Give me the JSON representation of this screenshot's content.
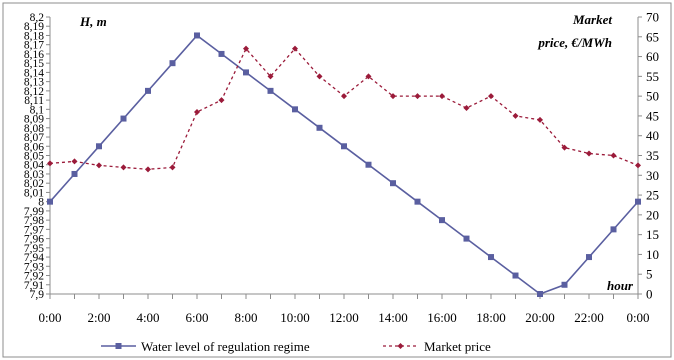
{
  "chart_data": {
    "type": "line",
    "x": [
      "0:00",
      "1:00",
      "2:00",
      "3:00",
      "4:00",
      "5:00",
      "6:00",
      "7:00",
      "8:00",
      "9:00",
      "10:00",
      "11:00",
      "12:00",
      "13:00",
      "14:00",
      "15:00",
      "16:00",
      "17:00",
      "18:00",
      "19:00",
      "20:00",
      "21:00",
      "22:00",
      "23:00",
      "0:00"
    ],
    "x_tick_labels": [
      "0:00",
      "2:00",
      "4:00",
      "6:00",
      "8:00",
      "10:00",
      "12:00",
      "14:00",
      "16:00",
      "18:00",
      "20:00",
      "22:00",
      "0:00"
    ],
    "series": [
      {
        "name": "Water level of regulation regime",
        "axis": "left",
        "color": "#5a5fa0",
        "marker": "square",
        "line_style": "solid",
        "values": [
          8.0,
          8.03,
          8.06,
          8.09,
          8.12,
          8.15,
          8.18,
          8.16,
          8.14,
          8.12,
          8.1,
          8.08,
          8.06,
          8.04,
          8.02,
          8.0,
          7.98,
          7.96,
          7.94,
          7.92,
          7.9,
          7.91,
          7.94,
          7.97,
          8.0
        ]
      },
      {
        "name": "Market price",
        "axis": "right",
        "color": "#9b1b3a",
        "marker": "diamond",
        "line_style": "dashed",
        "values": [
          33,
          33.5,
          32.5,
          32,
          31.5,
          32,
          46,
          49,
          62,
          55,
          62,
          55,
          50,
          55,
          50,
          50,
          50,
          47,
          50,
          45,
          44,
          37,
          35.5,
          35,
          32.5
        ]
      }
    ],
    "y_left": {
      "label": "H, m",
      "range": [
        7.9,
        8.2
      ],
      "step": 0.01,
      "tick_labels": [
        "7,9",
        "7,91",
        "7,92",
        "7,93",
        "7,94",
        "7,95",
        "7,96",
        "7,97",
        "7,98",
        "7,99",
        "8",
        "8,01",
        "8,02",
        "8,03",
        "8,04",
        "8,05",
        "8,06",
        "8,07",
        "8,08",
        "8,09",
        "8,1",
        "8,11",
        "8,12",
        "8,13",
        "8,14",
        "8,15",
        "8,16",
        "8,17",
        "8,18",
        "8,19",
        "8,2"
      ]
    },
    "y_right": {
      "label_line1": "Market",
      "label_line2": "price, €/MWh",
      "range": [
        0,
        70
      ],
      "step": 5,
      "tick_labels": [
        "0",
        "5",
        "10",
        "15",
        "20",
        "25",
        "30",
        "35",
        "40",
        "45",
        "50",
        "55",
        "60",
        "65",
        "70"
      ]
    },
    "x_axis_label": "hour",
    "grid": false,
    "legend_position": "bottom"
  }
}
